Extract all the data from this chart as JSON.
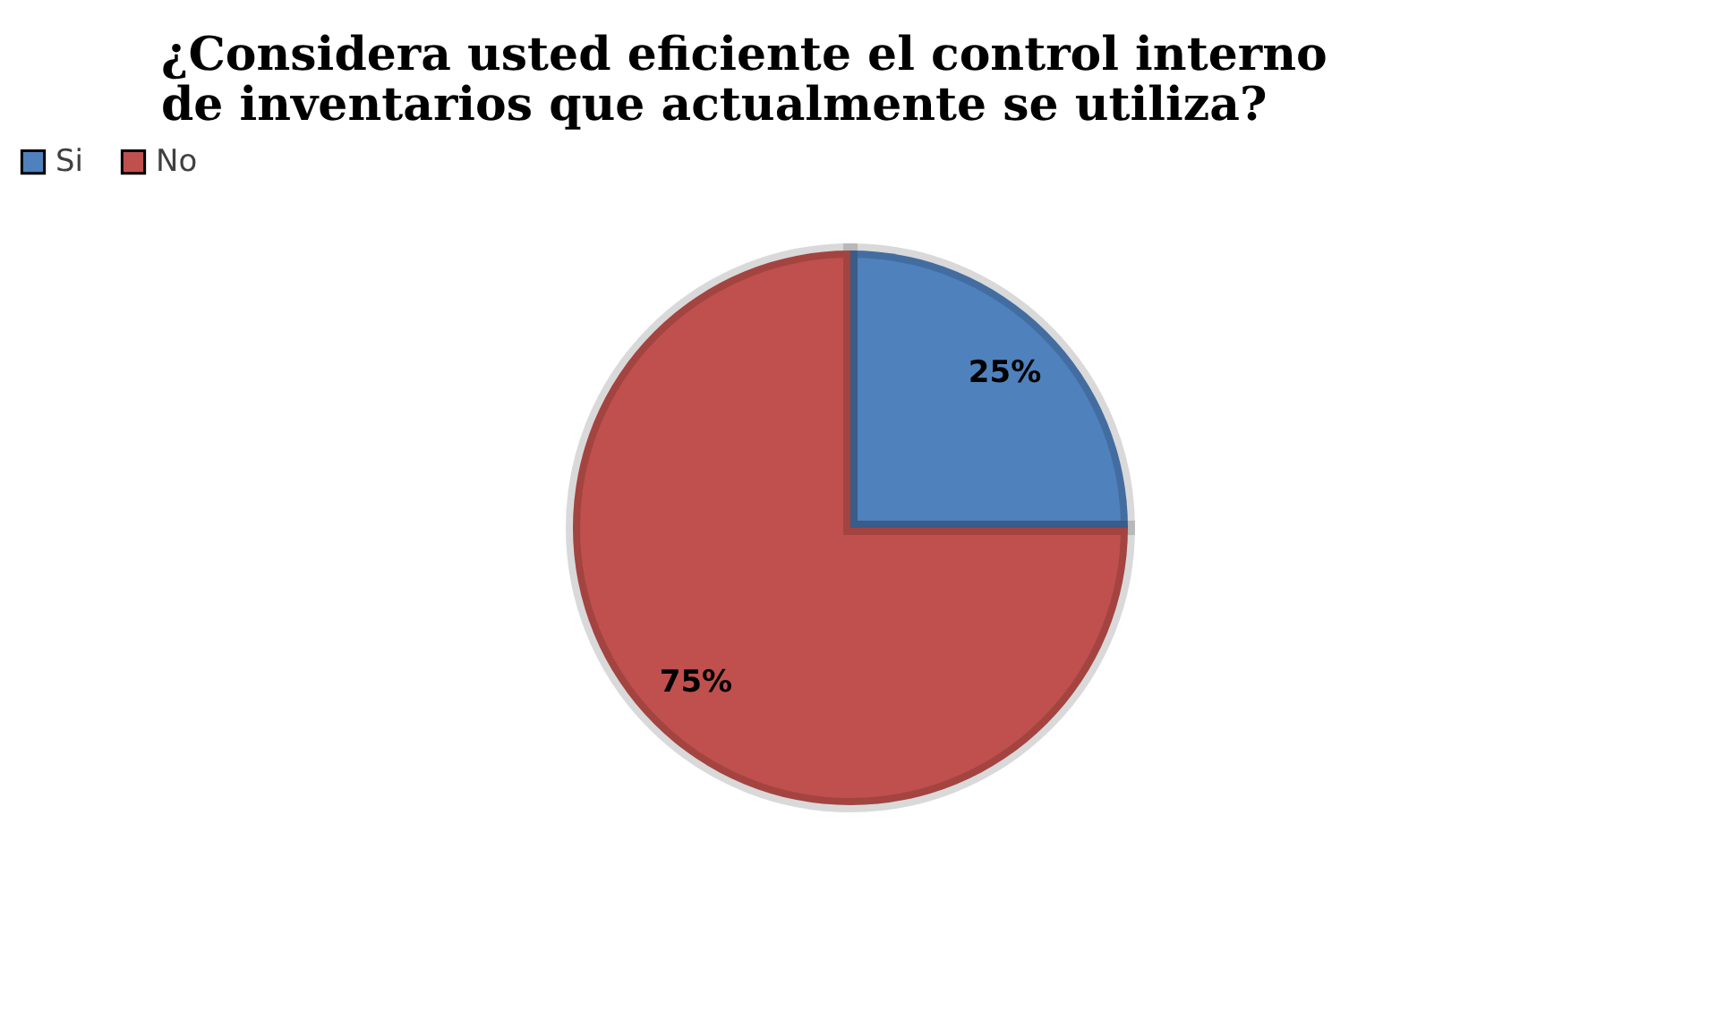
{
  "chart_data": {
    "type": "pie",
    "title": "¿Considera usted eficiente el control interno de inventarios que actualmente se utiliza?",
    "categories": [
      "Si",
      "No"
    ],
    "values": [
      25,
      75
    ],
    "colors": [
      "#4f81bd",
      "#c0504d"
    ],
    "value_labels": [
      "25%",
      "75%"
    ],
    "legend": "top"
  }
}
